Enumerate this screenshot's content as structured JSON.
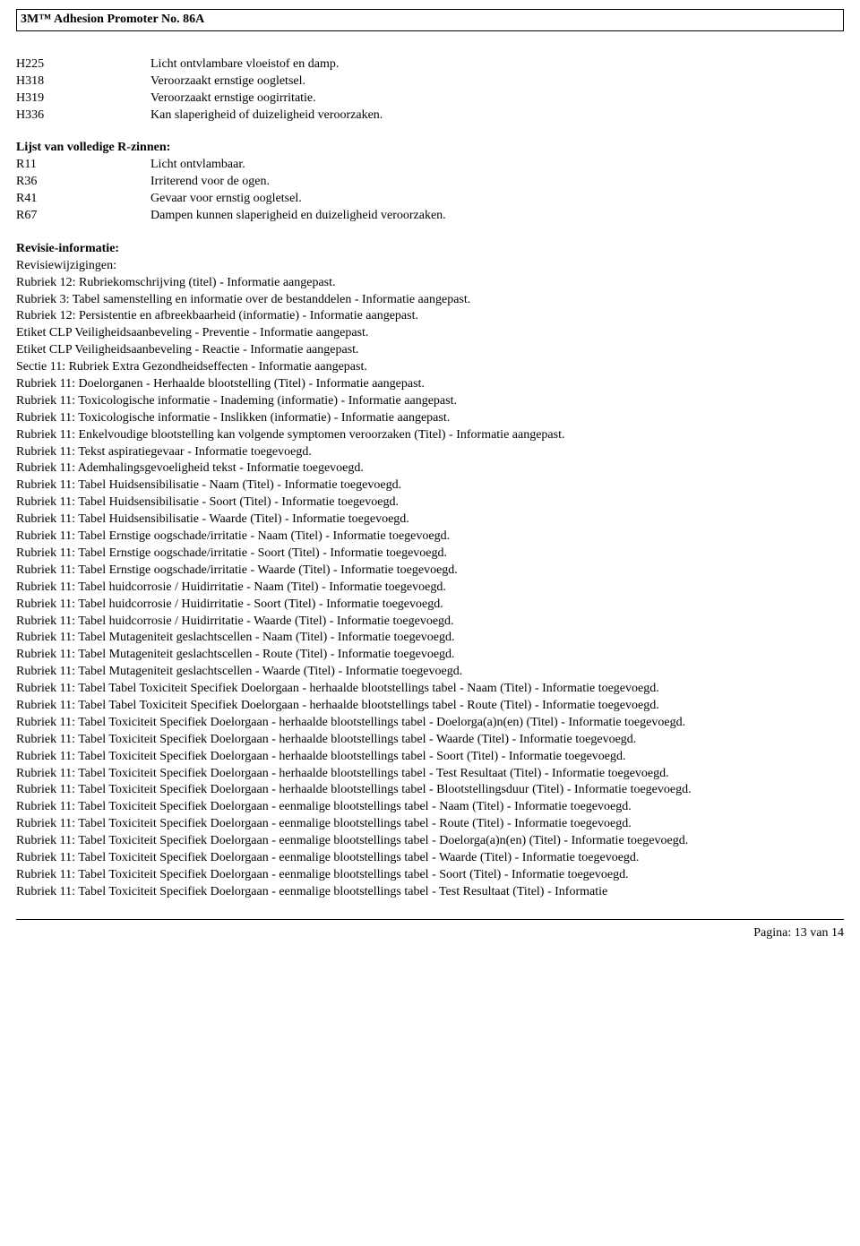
{
  "header": {
    "title": "3M™ Adhesion Promoter No. 86A"
  },
  "hcodes": [
    {
      "code": "H225",
      "desc": "Licht ontvlambare vloeistof en damp."
    },
    {
      "code": "H318",
      "desc": "Veroorzaakt ernstige oogletsel."
    },
    {
      "code": "H319",
      "desc": "Veroorzaakt ernstige oogirritatie."
    },
    {
      "code": "H336",
      "desc": "Kan slaperigheid of duizeligheid veroorzaken."
    }
  ],
  "rzinnen": {
    "title": "Lijst van volledige R-zinnen:",
    "rows": [
      {
        "code": "R11",
        "desc": "Licht ontvlambaar."
      },
      {
        "code": "R36",
        "desc": "Irriterend voor de ogen."
      },
      {
        "code": "R41",
        "desc": "Gevaar voor ernstig oogletsel."
      },
      {
        "code": "R67",
        "desc": "Dampen kunnen slaperigheid en duizeligheid veroorzaken."
      }
    ]
  },
  "revision": {
    "title": "Revisie-informatie:",
    "subtitle": "Revisiewijzigingen:",
    "items": [
      "Rubriek 12: Rubriekomschrijving (titel) - Informatie aangepast.",
      "Rubriek 3: Tabel samenstelling en informatie over de bestanddelen - Informatie aangepast.",
      "Rubriek 12: Persistentie en afbreekbaarheid (informatie) - Informatie aangepast.",
      "Etiket CLP Veiligheidsaanbeveling - Preventie - Informatie aangepast.",
      "Etiket CLP Veiligheidsaanbeveling - Reactie - Informatie aangepast.",
      "Sectie 11: Rubriek Extra Gezondheidseffecten - Informatie aangepast.",
      "Rubriek 11: Doelorganen - Herhaalde blootstelling (Titel) - Informatie aangepast.",
      "Rubriek 11: Toxicologische informatie - Inademing (informatie) - Informatie aangepast.",
      "Rubriek 11: Toxicologische informatie - Inslikken (informatie) - Informatie aangepast.",
      "Rubriek 11: Enkelvoudige blootstelling kan volgende symptomen veroorzaken (Titel) - Informatie aangepast.",
      "Rubriek 11: Tekst aspiratiegevaar - Informatie toegevoegd.",
      "Rubriek 11:  Ademhalingsgevoeligheid tekst - Informatie toegevoegd.",
      "Rubriek 11: Tabel Huidsensibilisatie - Naam (Titel) - Informatie toegevoegd.",
      "Rubriek 11: Tabel Huidsensibilisatie - Soort (Titel) - Informatie toegevoegd.",
      "Rubriek 11: Tabel Huidsensibilisatie - Waarde (Titel) - Informatie toegevoegd.",
      "Rubriek 11: Tabel Ernstige oogschade/irritatie - Naam (Titel) - Informatie toegevoegd.",
      "Rubriek 11: Tabel Ernstige oogschade/irritatie - Soort (Titel) - Informatie toegevoegd.",
      "Rubriek 11: Tabel Ernstige oogschade/irritatie - Waarde (Titel) - Informatie toegevoegd.",
      "Rubriek 11: Tabel huidcorrosie / Huidirritatie - Naam (Titel) - Informatie toegevoegd.",
      "Rubriek 11: Tabel huidcorrosie / Huidirritatie - Soort (Titel) - Informatie toegevoegd.",
      "Rubriek 11: Tabel huidcorrosie / Huidirritatie - Waarde (Titel) - Informatie toegevoegd.",
      "Rubriek 11: Tabel Mutageniteit geslachtscellen - Naam (Titel) - Informatie toegevoegd.",
      "Rubriek 11: Tabel Mutageniteit geslachtscellen - Route (Titel) - Informatie toegevoegd.",
      "Rubriek 11: Tabel Mutageniteit geslachtscellen - Waarde (Titel) - Informatie toegevoegd.",
      "Rubriek 11: Tabel Tabel Toxiciteit Specifiek Doelorgaan -  herhaalde blootstellings tabel - Naam (Titel) - Informatie toegevoegd.",
      "Rubriek 11: Tabel Tabel Toxiciteit Specifiek Doelorgaan -  herhaalde blootstellings tabel - Route (Titel) - Informatie toegevoegd.",
      "Rubriek 11: Tabel Toxiciteit Specifiek Doelorgaan -  herhaalde blootstellings tabel - Doelorga(a)n(en) (Titel) - Informatie toegevoegd.",
      "Rubriek 11: Tabel Toxiciteit Specifiek Doelorgaan -  herhaalde blootstellings tabel - Waarde (Titel) - Informatie toegevoegd.",
      "Rubriek 11: Tabel Toxiciteit Specifiek Doelorgaan -  herhaalde blootstellings tabel - Soort (Titel) - Informatie toegevoegd.",
      "Rubriek 11: Tabel Toxiciteit Specifiek Doelorgaan -  herhaalde blootstellings tabel - Test Resultaat (Titel)  - Informatie toegevoegd.",
      "Rubriek 11: Tabel Toxiciteit Specifiek Doelorgaan -  herhaalde blootstellings tabel - Blootstellingsduur (Titel) - Informatie toegevoegd.",
      "Rubriek 11: Tabel Toxiciteit Specifiek Doelorgaan -  eenmalige blootstellings tabel - Naam (Titel) - Informatie toegevoegd.",
      "Rubriek 11: Tabel Toxiciteit Specifiek Doelorgaan -  eenmalige blootstellings tabel - Route (Titel) - Informatie toegevoegd.",
      "Rubriek 11: Tabel Toxiciteit Specifiek Doelorgaan -  eenmalige blootstellings tabel - Doelorga(a)n(en) (Titel) - Informatie toegevoegd.",
      "Rubriek 11: Tabel Toxiciteit Specifiek Doelorgaan -  eenmalige blootstellings tabel - Waarde (Titel) - Informatie toegevoegd.",
      "Rubriek 11: Tabel Toxiciteit Specifiek Doelorgaan -  eenmalige blootstellings tabel - Soort (Titel) - Informatie toegevoegd.",
      "Rubriek 11: Tabel Toxiciteit Specifiek Doelorgaan -  eenmalige blootstellings tabel - Test Resultaat (Titel)  - Informatie"
    ]
  },
  "footer": {
    "page": "Pagina: 13 van  14"
  }
}
